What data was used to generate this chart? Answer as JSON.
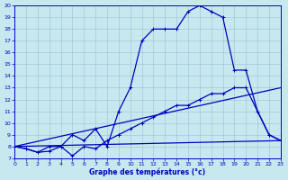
{
  "xlabel": "Graphe des températures (°c)",
  "bg_color": "#c8e8f0",
  "line_color": "#0000bb",
  "grid_color": "#a0c8d8",
  "xlim": [
    0,
    23
  ],
  "ylim": [
    7,
    20
  ],
  "yticks": [
    7,
    8,
    9,
    10,
    11,
    12,
    13,
    14,
    15,
    16,
    17,
    18,
    19,
    20
  ],
  "xticks": [
    0,
    1,
    2,
    3,
    4,
    5,
    6,
    7,
    8,
    9,
    10,
    11,
    12,
    13,
    14,
    15,
    16,
    17,
    18,
    19,
    20,
    21,
    22,
    23
  ],
  "curve1_x": [
    0,
    1,
    2,
    3,
    4,
    5,
    6,
    7,
    8,
    9,
    10,
    11,
    12,
    13,
    14,
    15,
    16,
    17,
    18,
    19,
    20,
    21,
    22,
    23
  ],
  "curve1_y": [
    8.0,
    7.8,
    7.5,
    8.0,
    8.0,
    9.0,
    8.5,
    9.5,
    8.0,
    11.0,
    13.0,
    17.0,
    18.0,
    18.0,
    18.0,
    19.5,
    20.0,
    19.5,
    19.0,
    14.5,
    14.5,
    11.0,
    9.0,
    8.5
  ],
  "curve2_x": [
    0,
    1,
    2,
    3,
    4,
    5,
    6,
    7,
    8,
    9,
    10,
    11,
    12,
    13,
    14,
    15,
    16,
    17,
    18,
    19,
    20,
    21,
    22,
    23
  ],
  "curve2_y": [
    8.0,
    7.8,
    7.5,
    7.6,
    8.0,
    7.2,
    8.0,
    7.8,
    8.5,
    9.0,
    9.5,
    10.0,
    10.5,
    11.0,
    11.5,
    11.5,
    12.0,
    12.5,
    12.5,
    13.0,
    13.0,
    11.0,
    9.0,
    8.5
  ],
  "line1_x": [
    0,
    23
  ],
  "line1_y": [
    8.0,
    8.5
  ],
  "line2_x": [
    0,
    23
  ],
  "line2_y": [
    8.0,
    13.0
  ]
}
